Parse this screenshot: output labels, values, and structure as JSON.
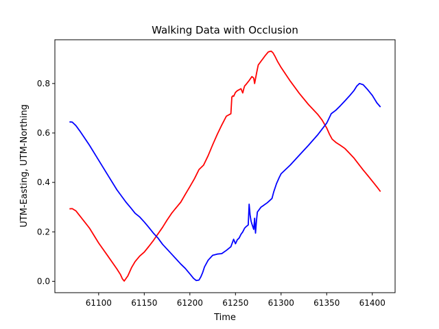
{
  "chart_data": {
    "type": "line",
    "title": "Walking Data with Occlusion",
    "xlabel": "Time",
    "ylabel": "UTM-Easting, UTM-Northing",
    "xlim": [
      61052,
      61425
    ],
    "ylim": [
      -0.046,
      0.977
    ],
    "xticks": [
      61100,
      61150,
      61200,
      61250,
      61300,
      61350,
      61400
    ],
    "yticks": [
      0.0,
      0.2,
      0.4,
      0.6,
      0.8
    ],
    "xtick_labels": [
      "61100",
      "61150",
      "61200",
      "61250",
      "61300",
      "61350",
      "61400"
    ],
    "ytick_labels": [
      "0.0",
      "0.2",
      "0.4",
      "0.6",
      "0.8"
    ],
    "grid": false,
    "legend": "none",
    "series": [
      {
        "color": "#ff0000",
        "x": [
          61068,
          61071,
          61075,
          61080,
          61090,
          61100,
          61110,
          61120,
          61124,
          61126,
          61128,
          61132,
          61136,
          61140,
          61145,
          61150,
          61155,
          61160,
          61165,
          61170,
          61175,
          61180,
          61185,
          61190,
          61195,
          61200,
          61205,
          61210,
          61215,
          61220,
          61225,
          61230,
          61235,
          61240,
          61245,
          61246,
          61247,
          61248,
          61250,
          61252,
          61254,
          61256,
          61258,
          61259,
          61260,
          61262,
          61265,
          61268,
          61270,
          61271,
          61273,
          61274,
          61275,
          61278,
          61280,
          61283,
          61286,
          61289,
          61291,
          61293,
          61296,
          61300,
          61310,
          61320,
          61330,
          61340,
          61345,
          61350,
          61353,
          61356,
          61360,
          61365,
          61370,
          61375,
          61380,
          61385,
          61390,
          61395,
          61400,
          61405,
          61409
        ],
        "y": [
          0.293,
          0.294,
          0.285,
          0.262,
          0.215,
          0.155,
          0.103,
          0.05,
          0.027,
          0.01,
          0.001,
          0.022,
          0.055,
          0.08,
          0.102,
          0.118,
          0.141,
          0.165,
          0.192,
          0.218,
          0.248,
          0.275,
          0.298,
          0.32,
          0.352,
          0.383,
          0.415,
          0.452,
          0.47,
          0.508,
          0.552,
          0.594,
          0.632,
          0.668,
          0.678,
          0.745,
          0.75,
          0.748,
          0.764,
          0.771,
          0.775,
          0.779,
          0.762,
          0.778,
          0.79,
          0.798,
          0.812,
          0.828,
          0.822,
          0.8,
          0.84,
          0.858,
          0.875,
          0.89,
          0.9,
          0.915,
          0.928,
          0.931,
          0.925,
          0.912,
          0.89,
          0.865,
          0.81,
          0.76,
          0.715,
          0.676,
          0.652,
          0.62,
          0.595,
          0.575,
          0.562,
          0.55,
          0.537,
          0.518,
          0.498,
          0.474,
          0.45,
          0.428,
          0.405,
          0.382,
          0.363
        ]
      },
      {
        "color": "#0000ff",
        "x": [
          61068,
          61071,
          61075,
          61080,
          61090,
          61100,
          61110,
          61120,
          61130,
          61135,
          61140,
          61145,
          61150,
          61155,
          61160,
          61165,
          61170,
          61180,
          61190,
          61195,
          61200,
          61204,
          61207,
          61210,
          61212,
          61214,
          61216,
          61220,
          61225,
          61230,
          61235,
          61240,
          61245,
          61248,
          61250,
          61252,
          61254,
          61256,
          61258,
          61260,
          61262,
          61264,
          61265,
          61266,
          61267,
          61268,
          61270,
          61271,
          61272,
          61273,
          61274,
          61275,
          61278,
          61280,
          61285,
          61290,
          61292,
          61295,
          61298,
          61300,
          61310,
          61320,
          61330,
          61340,
          61350,
          61355,
          61360,
          61365,
          61370,
          61375,
          61380,
          61383,
          61386,
          61390,
          61395,
          61400,
          61405,
          61409
        ],
        "y": [
          0.645,
          0.644,
          0.63,
          0.605,
          0.55,
          0.49,
          0.43,
          0.37,
          0.32,
          0.298,
          0.275,
          0.26,
          0.24,
          0.218,
          0.195,
          0.175,
          0.15,
          0.11,
          0.07,
          0.052,
          0.03,
          0.012,
          0.003,
          0.005,
          0.018,
          0.035,
          0.058,
          0.085,
          0.105,
          0.11,
          0.112,
          0.125,
          0.14,
          0.17,
          0.152,
          0.168,
          0.175,
          0.19,
          0.2,
          0.215,
          0.222,
          0.228,
          0.312,
          0.268,
          0.245,
          0.232,
          0.21,
          0.255,
          0.195,
          0.245,
          0.28,
          0.285,
          0.3,
          0.305,
          0.318,
          0.335,
          0.362,
          0.395,
          0.42,
          0.435,
          0.47,
          0.51,
          0.55,
          0.592,
          0.64,
          0.678,
          0.692,
          0.71,
          0.73,
          0.75,
          0.772,
          0.79,
          0.8,
          0.795,
          0.775,
          0.752,
          0.722,
          0.705
        ]
      }
    ]
  }
}
